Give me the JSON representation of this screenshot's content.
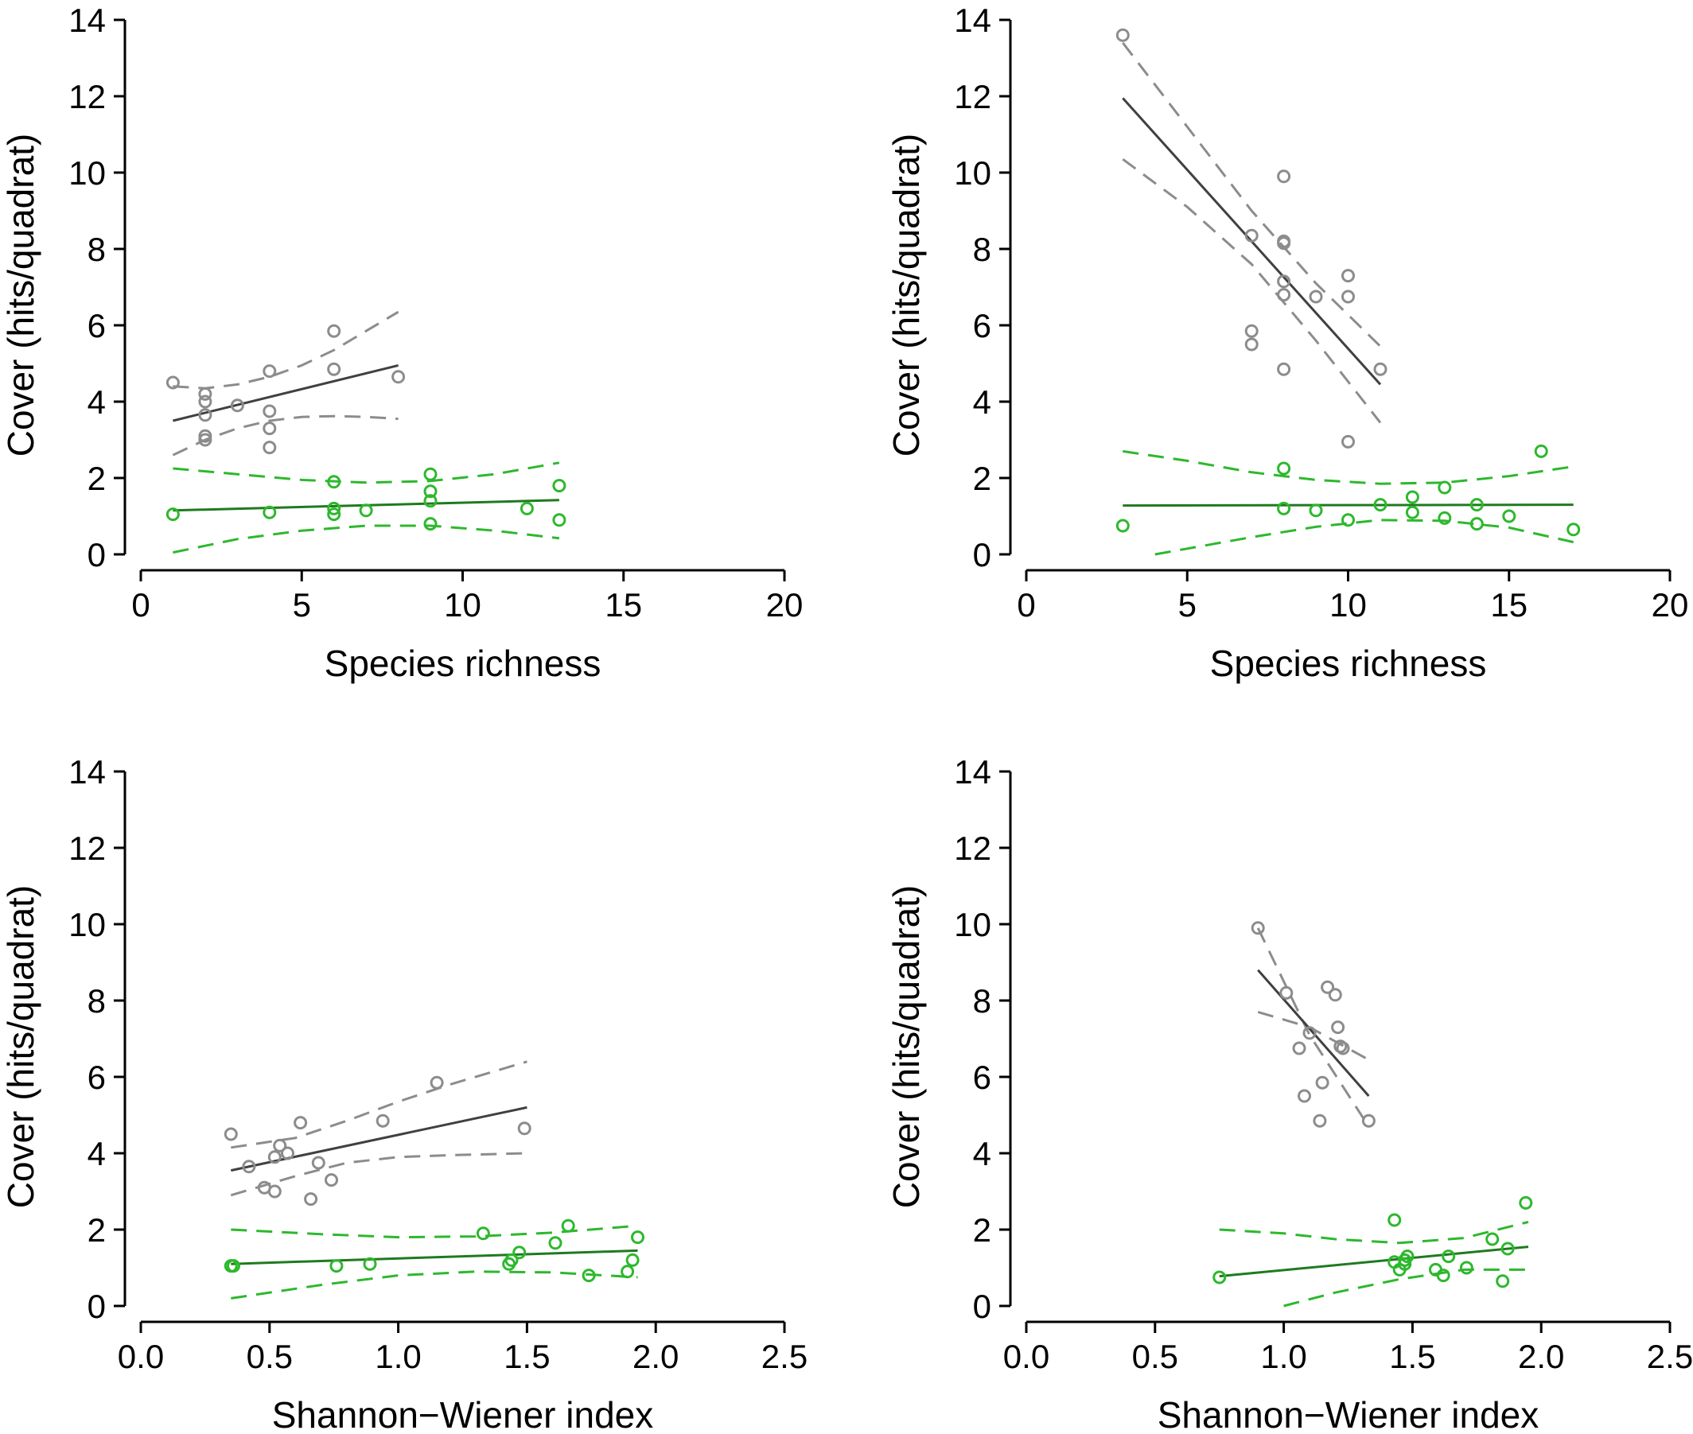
{
  "colors": {
    "grey_points": "#8c8c8c",
    "grey_fit": "#404040",
    "grey_ci": "#8c8c8c",
    "green_points": "#2db82d",
    "green_fit": "#1f7a1f",
    "green_ci": "#2db82d"
  },
  "chart_data": [
    {
      "type": "scatter",
      "xlabel": "Species richness",
      "ylabel": "Cover (hits/quadrat)",
      "xlim": [
        0,
        20
      ],
      "ylim": [
        0,
        14
      ],
      "xticks": [
        "0",
        "5",
        "10",
        "15",
        "20"
      ],
      "yticks": [
        "0",
        "2",
        "4",
        "6",
        "8",
        "10",
        "12",
        "14"
      ],
      "grid": false,
      "series": [
        {
          "color": "grey",
          "points": [
            [
              1,
              4.5
            ],
            [
              2,
              4.2
            ],
            [
              2,
              4.0
            ],
            [
              2,
              3.65
            ],
            [
              2,
              3.1
            ],
            [
              2,
              3.0
            ],
            [
              3,
              3.9
            ],
            [
              4,
              4.8
            ],
            [
              4,
              3.75
            ],
            [
              4,
              3.3
            ],
            [
              4,
              2.8
            ],
            [
              6,
              5.85
            ],
            [
              6,
              4.85
            ],
            [
              8,
              4.65
            ]
          ],
          "fit": [
            [
              1,
              3.5
            ],
            [
              8,
              4.95
            ]
          ],
          "ci_upper": [
            [
              1,
              4.4
            ],
            [
              2,
              4.35
            ],
            [
              3,
              4.45
            ],
            [
              4,
              4.65
            ],
            [
              5,
              4.95
            ],
            [
              6,
              5.35
            ],
            [
              7,
              5.85
            ],
            [
              8,
              6.35
            ]
          ],
          "ci_lower": [
            [
              1,
              2.6
            ],
            [
              2,
              3.0
            ],
            [
              3,
              3.3
            ],
            [
              4,
              3.5
            ],
            [
              5,
              3.6
            ],
            [
              6,
              3.62
            ],
            [
              7,
              3.6
            ],
            [
              8,
              3.55
            ]
          ]
        },
        {
          "color": "green",
          "points": [
            [
              1,
              1.05
            ],
            [
              4,
              1.1
            ],
            [
              6,
              1.9
            ],
            [
              6,
              1.2
            ],
            [
              6,
              1.05
            ],
            [
              7,
              1.15
            ],
            [
              9,
              2.1
            ],
            [
              9,
              1.65
            ],
            [
              9,
              1.4
            ],
            [
              9,
              0.8
            ],
            [
              12,
              1.2
            ],
            [
              13,
              1.8
            ],
            [
              13,
              0.9
            ]
          ],
          "fit": [
            [
              1,
              1.15
            ],
            [
              13,
              1.42
            ]
          ],
          "ci_upper": [
            [
              1,
              2.25
            ],
            [
              3,
              2.1
            ],
            [
              5,
              1.95
            ],
            [
              7,
              1.88
            ],
            [
              9,
              1.92
            ],
            [
              11,
              2.1
            ],
            [
              13,
              2.4
            ]
          ],
          "ci_lower": [
            [
              1,
              0.05
            ],
            [
              3,
              0.4
            ],
            [
              5,
              0.62
            ],
            [
              7,
              0.75
            ],
            [
              9,
              0.75
            ],
            [
              11,
              0.62
            ],
            [
              13,
              0.42
            ]
          ]
        }
      ]
    },
    {
      "type": "scatter",
      "xlabel": "Species richness",
      "ylabel": "Cover (hits/quadrat)",
      "xlim": [
        0,
        20
      ],
      "ylim": [
        0,
        14
      ],
      "xticks": [
        "0",
        "5",
        "10",
        "15",
        "20"
      ],
      "yticks": [
        "0",
        "2",
        "4",
        "6",
        "8",
        "10",
        "12",
        "14"
      ],
      "grid": false,
      "series": [
        {
          "color": "grey",
          "points": [
            [
              3,
              13.6
            ],
            [
              7,
              8.35
            ],
            [
              7,
              5.85
            ],
            [
              7,
              5.5
            ],
            [
              8,
              9.9
            ],
            [
              8,
              8.2
            ],
            [
              8,
              8.15
            ],
            [
              8,
              7.15
            ],
            [
              8,
              6.8
            ],
            [
              8,
              4.85
            ],
            [
              9,
              6.75
            ],
            [
              10,
              7.3
            ],
            [
              10,
              6.75
            ],
            [
              10,
              2.95
            ],
            [
              11,
              4.85
            ]
          ],
          "fit": [
            [
              3,
              11.95
            ],
            [
              11,
              4.45
            ]
          ],
          "ci_upper": [
            [
              3,
              13.4
            ],
            [
              5,
              11.2
            ],
            [
              7,
              9.0
            ],
            [
              9,
              7.1
            ],
            [
              11,
              5.45
            ]
          ],
          "ci_lower": [
            [
              3,
              10.35
            ],
            [
              5,
              9.1
            ],
            [
              7,
              7.6
            ],
            [
              9,
              5.6
            ],
            [
              11,
              3.45
            ]
          ]
        },
        {
          "color": "green",
          "points": [
            [
              3,
              0.75
            ],
            [
              8,
              2.25
            ],
            [
              8,
              1.2
            ],
            [
              9,
              1.15
            ],
            [
              10,
              0.9
            ],
            [
              11,
              1.3
            ],
            [
              12,
              1.5
            ],
            [
              12,
              1.1
            ],
            [
              13,
              1.75
            ],
            [
              13,
              0.95
            ],
            [
              14,
              1.3
            ],
            [
              14,
              0.8
            ],
            [
              15,
              1.0
            ],
            [
              16,
              2.7
            ],
            [
              17,
              0.65
            ]
          ],
          "fit": [
            [
              3,
              1.28
            ],
            [
              17,
              1.3
            ]
          ],
          "ci_upper": [
            [
              3,
              2.7
            ],
            [
              5,
              2.45
            ],
            [
              7,
              2.15
            ],
            [
              9,
              1.95
            ],
            [
              11,
              1.85
            ],
            [
              13,
              1.88
            ],
            [
              15,
              2.05
            ],
            [
              17,
              2.3
            ]
          ],
          "ci_lower": [
            [
              4,
              0.0
            ],
            [
              5,
              0.15
            ],
            [
              7,
              0.45
            ],
            [
              9,
              0.72
            ],
            [
              11,
              0.9
            ],
            [
              13,
              0.88
            ],
            [
              15,
              0.7
            ],
            [
              17,
              0.32
            ]
          ]
        }
      ]
    },
    {
      "type": "scatter",
      "xlabel": "Shannon−Wiener index",
      "ylabel": "Cover (hits/quadrat)",
      "xlim": [
        0,
        2.5
      ],
      "ylim": [
        0,
        14
      ],
      "xticks": [
        "0.0",
        "0.5",
        "1.0",
        "1.5",
        "2.0",
        "2.5"
      ],
      "yticks": [
        "0",
        "2",
        "4",
        "6",
        "8",
        "10",
        "12",
        "14"
      ],
      "grid": false,
      "series": [
        {
          "color": "grey",
          "points": [
            [
              0.35,
              4.5
            ],
            [
              0.42,
              3.65
            ],
            [
              0.48,
              3.1
            ],
            [
              0.52,
              3.0
            ],
            [
              0.52,
              3.9
            ],
            [
              0.54,
              4.2
            ],
            [
              0.57,
              4.0
            ],
            [
              0.62,
              4.8
            ],
            [
              0.66,
              2.8
            ],
            [
              0.69,
              3.75
            ],
            [
              0.74,
              3.3
            ],
            [
              0.94,
              4.85
            ],
            [
              1.15,
              5.85
            ],
            [
              1.49,
              4.65
            ]
          ],
          "fit": [
            [
              0.35,
              3.55
            ],
            [
              1.5,
              5.2
            ]
          ],
          "ci_upper": [
            [
              0.35,
              4.15
            ],
            [
              0.6,
              4.4
            ],
            [
              0.8,
              4.85
            ],
            [
              1.0,
              5.35
            ],
            [
              1.2,
              5.8
            ],
            [
              1.5,
              6.4
            ]
          ],
          "ci_lower": [
            [
              0.35,
              2.9
            ],
            [
              0.6,
              3.4
            ],
            [
              0.8,
              3.75
            ],
            [
              1.0,
              3.9
            ],
            [
              1.2,
              3.95
            ],
            [
              1.5,
              4.0
            ]
          ]
        },
        {
          "color": "green",
          "points": [
            [
              0.35,
              1.05
            ],
            [
              0.36,
              1.05
            ],
            [
              0.76,
              1.05
            ],
            [
              0.89,
              1.1
            ],
            [
              1.33,
              1.9
            ],
            [
              1.43,
              1.1
            ],
            [
              1.44,
              1.2
            ],
            [
              1.47,
              1.4
            ],
            [
              1.61,
              1.65
            ],
            [
              1.66,
              2.1
            ],
            [
              1.74,
              0.8
            ],
            [
              1.89,
              0.9
            ],
            [
              1.91,
              1.2
            ],
            [
              1.93,
              1.8
            ]
          ],
          "fit": [
            [
              0.35,
              1.1
            ],
            [
              1.93,
              1.45
            ]
          ],
          "ci_upper": [
            [
              0.35,
              2.0
            ],
            [
              0.7,
              1.88
            ],
            [
              1.0,
              1.8
            ],
            [
              1.3,
              1.82
            ],
            [
              1.6,
              1.92
            ],
            [
              1.93,
              2.1
            ]
          ],
          "ci_lower": [
            [
              0.35,
              0.2
            ],
            [
              0.7,
              0.55
            ],
            [
              1.0,
              0.8
            ],
            [
              1.3,
              0.9
            ],
            [
              1.6,
              0.88
            ],
            [
              1.93,
              0.75
            ]
          ]
        }
      ]
    },
    {
      "type": "scatter",
      "xlabel": "Shannon−Wiener index",
      "ylabel": "Cover (hits/quadrat)",
      "xlim": [
        0,
        2.5
      ],
      "ylim": [
        0,
        14
      ],
      "xticks": [
        "0.0",
        "0.5",
        "1.0",
        "1.5",
        "2.0",
        "2.5"
      ],
      "yticks": [
        "0",
        "2",
        "4",
        "6",
        "8",
        "10",
        "12",
        "14"
      ],
      "grid": false,
      "series": [
        {
          "color": "grey",
          "points": [
            [
              0.9,
              9.9
            ],
            [
              1.01,
              8.2
            ],
            [
              1.06,
              6.75
            ],
            [
              1.08,
              5.5
            ],
            [
              1.1,
              7.15
            ],
            [
              1.14,
              4.85
            ],
            [
              1.15,
              5.85
            ],
            [
              1.17,
              8.35
            ],
            [
              1.2,
              8.15
            ],
            [
              1.21,
              7.3
            ],
            [
              1.22,
              6.8
            ],
            [
              1.23,
              6.75
            ],
            [
              1.33,
              4.85
            ]
          ],
          "fit": [
            [
              0.9,
              8.8
            ],
            [
              1.33,
              5.5
            ]
          ],
          "ci_upper": [
            [
              0.9,
              7.7
            ],
            [
              1.1,
              7.3
            ],
            [
              1.33,
              6.45
            ]
          ],
          "ci_lower": [
            [
              0.9,
              9.9
            ],
            [
              1.1,
              7.1
            ],
            [
              1.33,
              4.7
            ]
          ]
        },
        {
          "color": "green",
          "points": [
            [
              0.75,
              0.75
            ],
            [
              1.43,
              2.25
            ],
            [
              1.43,
              1.15
            ],
            [
              1.45,
              0.95
            ],
            [
              1.47,
              1.1
            ],
            [
              1.47,
              1.2
            ],
            [
              1.48,
              1.3
            ],
            [
              1.59,
              0.95
            ],
            [
              1.62,
              0.8
            ],
            [
              1.64,
              1.3
            ],
            [
              1.71,
              1.0
            ],
            [
              1.81,
              1.75
            ],
            [
              1.85,
              0.65
            ],
            [
              1.87,
              1.5
            ],
            [
              1.94,
              2.7
            ]
          ],
          "fit": [
            [
              0.75,
              0.78
            ],
            [
              1.95,
              1.55
            ]
          ],
          "ci_upper": [
            [
              0.75,
              2.0
            ],
            [
              1.0,
              1.9
            ],
            [
              1.2,
              1.75
            ],
            [
              1.45,
              1.65
            ],
            [
              1.7,
              1.78
            ],
            [
              1.95,
              2.2
            ]
          ],
          "ci_lower": [
            [
              1.0,
              0.0
            ],
            [
              1.2,
              0.35
            ],
            [
              1.45,
              0.7
            ],
            [
              1.7,
              0.95
            ],
            [
              1.95,
              0.95
            ]
          ]
        }
      ]
    }
  ]
}
